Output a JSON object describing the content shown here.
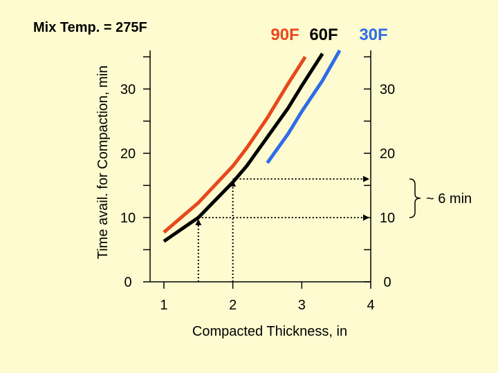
{
  "chart_data": {
    "type": "line",
    "title": "Mix Temp. = 275F",
    "xlabel": "Compacted Thickness, in",
    "ylabel": "Time avail. for Compaction, min",
    "xlim": [
      0.8,
      4.0
    ],
    "ylim": [
      0,
      36
    ],
    "x_ticks": [
      "1",
      "2",
      "3",
      "4"
    ],
    "x_tick_values": [
      1,
      2,
      3,
      4
    ],
    "y_ticks_left": [
      "0",
      "10",
      "20",
      "30"
    ],
    "y_ticks_right": [
      "0",
      "10",
      "20",
      "30"
    ],
    "y_tick_values": [
      0,
      10,
      20,
      30
    ],
    "y_minor_ticks": [
      5,
      15,
      25,
      35
    ],
    "series": [
      {
        "name": "90F",
        "color": "#e8471d",
        "x": [
          1.0,
          1.5,
          2.0,
          2.2,
          2.5,
          2.8,
          3.05
        ],
        "y": [
          7.7,
          12.3,
          18.0,
          20.8,
          25.5,
          30.8,
          35.0
        ]
      },
      {
        "name": "60F",
        "color": "#000000",
        "x": [
          1.0,
          1.5,
          2.0,
          2.2,
          2.5,
          2.7,
          2.8,
          3.0,
          3.3
        ],
        "y": [
          6.3,
          10.0,
          15.5,
          18.0,
          22.5,
          25.5,
          27.0,
          30.5,
          35.5
        ]
      },
      {
        "name": "30F",
        "color": "#2f6ce8",
        "x": [
          2.5,
          2.8,
          3.0,
          3.3,
          3.55
        ],
        "y": [
          18.5,
          23.0,
          26.5,
          31.3,
          36.0
        ]
      }
    ],
    "guides": [
      {
        "x": 1.5,
        "y": 10.0
      },
      {
        "x": 2.0,
        "y": 16.0
      }
    ],
    "annotation": "~ 6 min",
    "annotation_range": [
      10.0,
      16.0
    ],
    "grid": false
  }
}
